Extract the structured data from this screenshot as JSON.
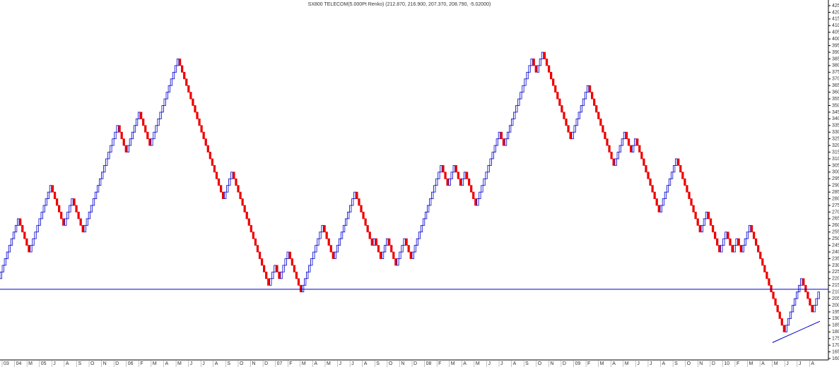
{
  "chart_data": {
    "type": "renko",
    "title": "SX800 TELECOM(5.000Pt Renko) (212.870, 216.900, 207.370, 208.790, -5.02000)",
    "brick_size": 5,
    "up_color": "#0000cc",
    "down_color": "#ee0000",
    "pivots": [
      220,
      265,
      240,
      290,
      260,
      280,
      255,
      335,
      315,
      345,
      320,
      385,
      280,
      300,
      215,
      230,
      220,
      240,
      210,
      260,
      235,
      285,
      245,
      250,
      235,
      250,
      230,
      250,
      235,
      305,
      290,
      305,
      290,
      300,
      275,
      330,
      320,
      385,
      375,
      390,
      325,
      365,
      305,
      330,
      315,
      325,
      270,
      310,
      255,
      270,
      240,
      255,
      240,
      250,
      240,
      260,
      180,
      220,
      195,
      210
    ],
    "hline": {
      "value": 212,
      "color": "#0000cc"
    },
    "trendline": {
      "values": [
        172,
        188
      ],
      "color": "#0000cc"
    },
    "ylim": [
      160,
      425
    ],
    "yticks": [
      160,
      165,
      170,
      175,
      180,
      185,
      190,
      195,
      200,
      205,
      210,
      215,
      220,
      225,
      230,
      235,
      240,
      245,
      250,
      255,
      260,
      265,
      270,
      275,
      280,
      285,
      290,
      295,
      300,
      305,
      310,
      315,
      320,
      325,
      330,
      335,
      340,
      345,
      350,
      355,
      360,
      365,
      370,
      375,
      380,
      385,
      390,
      395,
      400,
      405,
      410,
      415,
      420,
      425
    ],
    "x_labels": [
      "03",
      "04",
      "M",
      "05",
      "J",
      "A",
      "S",
      "O",
      "N",
      "D",
      "06",
      "F",
      "M",
      "A",
      "M",
      "J",
      "J",
      "A",
      "S",
      "O",
      "N",
      "D",
      "07",
      "F",
      "M",
      "A",
      "M",
      "J",
      "J",
      "A",
      "S",
      "O",
      "N",
      "D",
      "08",
      "F",
      "M",
      "A",
      "M",
      "J",
      "J",
      "A",
      "S",
      "O",
      "N",
      "D",
      "09",
      "F",
      "M",
      "A",
      "M",
      "J",
      "J",
      "A",
      "S",
      "O",
      "N",
      "D",
      "10",
      "F",
      "M",
      "A",
      "M",
      "J",
      "J",
      "A"
    ]
  }
}
